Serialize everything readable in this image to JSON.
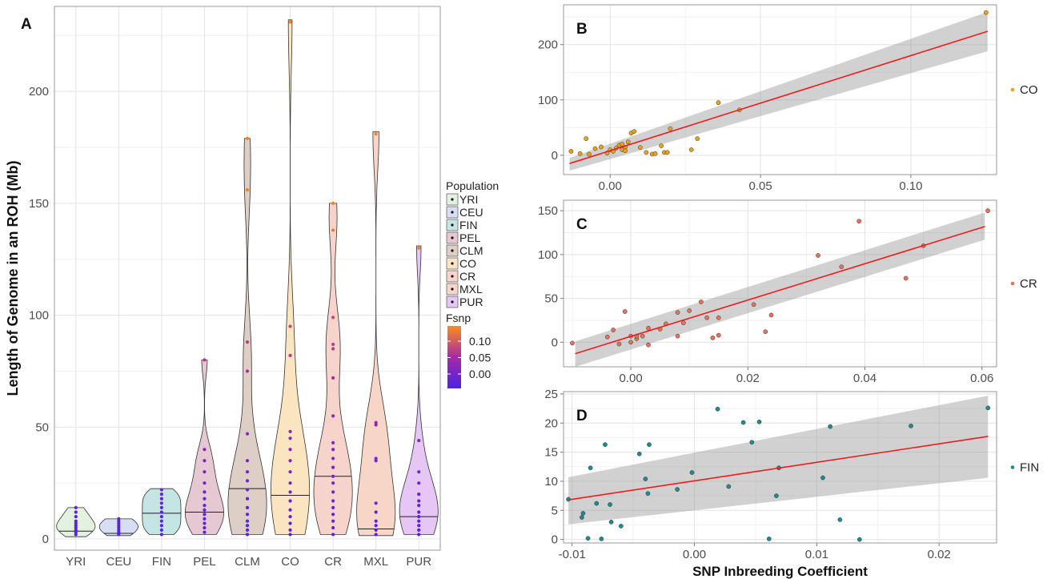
{
  "chart_data": [
    {
      "panel": "A",
      "type": "violin",
      "ylabel": "Length of Genome in an ROH (Mb)",
      "xlabel": "",
      "ylim": [
        -5,
        238
      ],
      "yticks": [
        0,
        50,
        100,
        150,
        200
      ],
      "categories": [
        "YRI",
        "CEU",
        "FIN",
        "PEL",
        "CLM",
        "CO",
        "CR",
        "MXL",
        "PUR"
      ],
      "fill_colors": [
        "#e3f1e0",
        "#d7def3",
        "#c5e4e4",
        "#e6c8d2",
        "#ddcfc6",
        "#fbe5c1",
        "#f6d4cc",
        "#f7d6c8",
        "#e5c6f4"
      ],
      "medians": [
        3.5,
        2.5,
        11.5,
        12,
        22.5,
        19.5,
        28,
        4.5,
        10
      ],
      "ranges": [
        [
          1,
          14
        ],
        [
          1.5,
          9
        ],
        [
          2,
          22.5
        ],
        [
          2,
          80
        ],
        [
          2,
          179
        ],
        [
          2,
          232
        ],
        [
          2,
          150
        ],
        [
          1.5,
          182
        ],
        [
          2,
          131
        ]
      ],
      "legend_title": "Population",
      "legend_entries": [
        "YRI",
        "CEU",
        "FIN",
        "PEL",
        "CLM",
        "CO",
        "CR",
        "MXL",
        "PUR"
      ],
      "color_legend": {
        "title": "Fsnp",
        "ticks": [
          "0.10",
          "0.05",
          "0.00"
        ]
      },
      "points": {
        "YRI": [
          2,
          3,
          4,
          5,
          6,
          7,
          8,
          10,
          12,
          14
        ],
        "CEU": [
          2,
          3,
          4,
          5,
          6,
          7,
          8,
          9
        ],
        "FIN": [
          2,
          4,
          6,
          8,
          10,
          12,
          14,
          16,
          18,
          20,
          22
        ],
        "PEL": [
          3,
          5,
          7,
          9,
          11,
          13,
          15,
          18,
          21,
          25,
          30,
          35,
          40,
          80
        ],
        "CLM": [
          2,
          4,
          6,
          8,
          11,
          14,
          18,
          22,
          26,
          30,
          35,
          47,
          75,
          88,
          156,
          179
        ],
        "CO": [
          2,
          4,
          7,
          10,
          13,
          17,
          21,
          25,
          30,
          35,
          40,
          45,
          48,
          82,
          95,
          231
        ],
        "CR": [
          2,
          5,
          8,
          11,
          14,
          17,
          21,
          25,
          28,
          32,
          36,
          40,
          43,
          55,
          72,
          85,
          87,
          99,
          138,
          150
        ],
        "MXL": [
          2,
          4,
          6,
          8,
          12,
          16,
          35,
          36,
          51,
          52,
          181
        ],
        "PUR": [
          2,
          4,
          6,
          8,
          10,
          12,
          15,
          17,
          20,
          25,
          30,
          44,
          130
        ]
      }
    },
    {
      "panel": "B",
      "type": "scatter",
      "legend_label": "CO",
      "color": "#e8a317",
      "xlim": [
        -0.0155,
        0.1285
      ],
      "ylim": [
        -35,
        272
      ],
      "xticks": [
        0.0,
        0.05,
        0.1
      ],
      "xtick_labels": [
        "0.00",
        "0.05",
        "0.10"
      ],
      "yticks": [
        0,
        100,
        200
      ],
      "x": [
        -0.013,
        -0.01,
        -0.008,
        -0.007,
        -0.005,
        -0.003,
        -0.001,
        0.0,
        0.001,
        0.002,
        0.003,
        0.004,
        0.004,
        0.005,
        0.005,
        0.006,
        0.007,
        0.008,
        0.01,
        0.012,
        0.014,
        0.015,
        0.017,
        0.018,
        0.019,
        0.02,
        0.027,
        0.029,
        0.036,
        0.043,
        0.125
      ],
      "y": [
        7,
        3,
        30,
        2,
        12,
        15,
        4,
        10,
        7,
        13,
        18,
        10,
        20,
        14,
        8,
        24,
        40,
        43,
        14,
        5,
        2,
        3,
        17,
        5,
        5,
        48,
        10,
        30,
        95,
        82,
        258
      ],
      "fit": {
        "x": [
          -0.0135,
          0.1255
        ],
        "y": [
          -15,
          224
        ]
      },
      "band": {
        "lower": [
          -28,
          188
        ],
        "upper": [
          -5,
          259
        ]
      }
    },
    {
      "panel": "C",
      "type": "scatter",
      "legend_label": "CR",
      "color": "#e3735e",
      "xlim": [
        -0.0115,
        0.0625
      ],
      "ylim": [
        -28,
        162
      ],
      "xticks": [
        0.0,
        0.02,
        0.04,
        0.06
      ],
      "xtick_labels": [
        "0.00",
        "0.02",
        "0.04",
        "0.06"
      ],
      "yticks": [
        0,
        50,
        100,
        150
      ],
      "x": [
        -0.01,
        -0.004,
        -0.003,
        -0.002,
        -0.001,
        0.0,
        0.0,
        0.001,
        0.001,
        0.002,
        0.003,
        0.003,
        0.005,
        0.006,
        0.008,
        0.008,
        0.009,
        0.01,
        0.012,
        0.013,
        0.014,
        0.015,
        0.015,
        0.021,
        0.023,
        0.024,
        0.032,
        0.036,
        0.039,
        0.047,
        0.05,
        0.061
      ],
      "y": [
        -1,
        6,
        14,
        -2,
        35,
        7,
        0,
        4,
        7,
        7,
        16,
        -3,
        15,
        21,
        34,
        7,
        22,
        36,
        46,
        28,
        5,
        28,
        8,
        43,
        12,
        31,
        99,
        86,
        138,
        73,
        110,
        150
      ],
      "fit": {
        "x": [
          -0.0095,
          0.0605
        ],
        "y": [
          -13,
          132
        ]
      },
      "band": {
        "lower": [
          -28,
          117
        ],
        "upper": [
          1,
          148
        ]
      }
    },
    {
      "panel": "D",
      "type": "scatter",
      "legend_label": "FIN",
      "color": "#1f8b8f",
      "xlabel": "SNP Inbreeding Coefficient",
      "xlim": [
        -0.0107,
        0.0247
      ],
      "ylim": [
        -0.6,
        25.4
      ],
      "xticks": [
        -0.01,
        0.0,
        0.01,
        0.02
      ],
      "xtick_labels": [
        "-0.01",
        "0.00",
        "0.01",
        "0.02"
      ],
      "yticks": [
        0,
        5,
        10,
        15,
        20,
        25
      ],
      "x": [
        -0.0103,
        -0.0092,
        -0.0091,
        -0.0087,
        -0.0085,
        -0.008,
        -0.0076,
        -0.0073,
        -0.0069,
        -0.0068,
        -0.006,
        -0.0045,
        -0.004,
        -0.0038,
        -0.0037,
        -0.0014,
        -0.0002,
        0.0019,
        0.0028,
        0.004,
        0.0047,
        0.0053,
        0.0061,
        0.0067,
        0.0069,
        0.0105,
        0.0111,
        0.0119,
        0.0135,
        0.0177,
        0.024
      ],
      "y": [
        6.9,
        3.8,
        4.5,
        0.2,
        12.3,
        6.2,
        0.1,
        16.3,
        6.0,
        3.0,
        2.3,
        14.7,
        10.4,
        7.9,
        16.3,
        8.6,
        11.5,
        22.4,
        9.1,
        20.1,
        16.7,
        20.2,
        0.1,
        7.5,
        12.3,
        10.6,
        19.4,
        3.4,
        0.0,
        19.5,
        22.6
      ],
      "fit": {
        "x": [
          -0.0103,
          0.024
        ],
        "y": [
          6.8,
          17.7
        ]
      },
      "band": {
        "lower": [
          2.6,
          10.6
        ],
        "upper": [
          10.7,
          24.7
        ]
      }
    }
  ],
  "panel_labels": [
    "A",
    "B",
    "C",
    "D"
  ]
}
